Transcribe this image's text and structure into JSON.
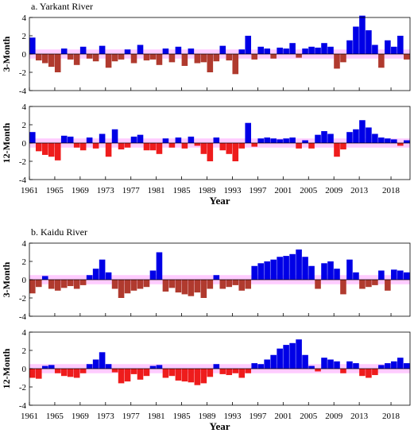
{
  "chart_data": [
    {
      "type": "area",
      "title": "a. Yarkant River",
      "xlabel": "Year",
      "subplots": [
        {
          "ylabel": "3-Month",
          "ylim": [
            -4,
            4
          ],
          "yticks": [
            "4",
            "2",
            "0",
            "-2",
            "-4"
          ],
          "x": [
            1961,
            1962,
            1963,
            1964,
            1965,
            1966,
            1967,
            1968,
            1969,
            1970,
            1971,
            1972,
            1973,
            1974,
            1975,
            1976,
            1977,
            1978,
            1979,
            1980,
            1981,
            1982,
            1983,
            1984,
            1985,
            1986,
            1987,
            1988,
            1989,
            1990,
            1991,
            1992,
            1993,
            1994,
            1995,
            1996,
            1997,
            1998,
            1999,
            2000,
            2001,
            2002,
            2003,
            2004,
            2005,
            2006,
            2007,
            2008,
            2009,
            2010,
            2011,
            2012,
            2013,
            2014,
            2015,
            2016,
            2017,
            2018,
            2019,
            2020
          ],
          "values": [
            1.8,
            -0.7,
            -1.0,
            -1.4,
            -2.0,
            0.6,
            -0.6,
            -1.2,
            0.8,
            -0.5,
            -0.8,
            0.9,
            -1.5,
            -0.8,
            -0.6,
            0.5,
            -1.0,
            1.0,
            -0.7,
            -0.6,
            -1.2,
            0.6,
            -0.9,
            0.8,
            -1.3,
            0.6,
            -1.0,
            -0.9,
            -2.0,
            -0.8,
            0.9,
            -0.7,
            -2.2,
            0.5,
            2.0,
            -0.6,
            0.8,
            0.6,
            -0.5,
            0.7,
            0.6,
            1.2,
            -0.4,
            0.6,
            0.8,
            0.7,
            1.2,
            0.8,
            -1.6,
            -0.9,
            1.5,
            3.0,
            4.2,
            2.6,
            1.0,
            -1.5,
            1.5,
            0.8,
            2.0,
            -0.6
          ]
        },
        {
          "ylabel": "12-Month",
          "ylim": [
            -4,
            4
          ],
          "yticks": [
            "4",
            "2",
            "0",
            "-2",
            "-4"
          ],
          "x": [
            1961,
            1962,
            1963,
            1964,
            1965,
            1966,
            1967,
            1968,
            1969,
            1970,
            1971,
            1972,
            1973,
            1974,
            1975,
            1976,
            1977,
            1978,
            1979,
            1980,
            1981,
            1982,
            1983,
            1984,
            1985,
            1986,
            1987,
            1988,
            1989,
            1990,
            1991,
            1992,
            1993,
            1994,
            1995,
            1996,
            1997,
            1998,
            1999,
            2000,
            2001,
            2002,
            2003,
            2004,
            2005,
            2006,
            2007,
            2008,
            2009,
            2010,
            2011,
            2012,
            2013,
            2014,
            2015,
            2016,
            2017,
            2018,
            2019,
            2020
          ],
          "values": [
            1.2,
            -0.9,
            -1.3,
            -1.5,
            -1.9,
            0.8,
            0.7,
            -0.5,
            -0.8,
            0.6,
            -0.6,
            1.0,
            -1.5,
            1.5,
            -0.7,
            -0.5,
            0.7,
            0.9,
            -0.8,
            -0.8,
            -1.2,
            0.5,
            -0.5,
            0.6,
            -0.6,
            0.7,
            -0.3,
            -1.2,
            -2.0,
            0.6,
            -0.8,
            -1.2,
            -2.0,
            -0.6,
            2.2,
            -0.4,
            0.5,
            0.6,
            0.5,
            0.4,
            0.5,
            0.6,
            -0.6,
            0.3,
            -0.6,
            0.9,
            1.3,
            1.0,
            -1.5,
            -0.7,
            1.2,
            1.5,
            2.5,
            1.7,
            1.0,
            0.6,
            0.5,
            0.4,
            -0.3,
            0.3
          ]
        }
      ],
      "xticks": [
        "1961",
        "1965",
        "1969",
        "1973",
        "1977",
        "1981",
        "1985",
        "1989",
        "1993",
        "1997",
        "2001",
        "2005",
        "2009",
        "2013",
        "2018"
      ]
    },
    {
      "type": "area",
      "title": "b. Kaidu River",
      "xlabel": "Year",
      "subplots": [
        {
          "ylabel": "3-Month",
          "ylim": [
            -4,
            4
          ],
          "yticks": [
            "4",
            "2",
            "0",
            "-2",
            "-4"
          ],
          "x": [
            1961,
            1962,
            1963,
            1964,
            1965,
            1966,
            1967,
            1968,
            1969,
            1970,
            1971,
            1972,
            1973,
            1974,
            1975,
            1976,
            1977,
            1978,
            1979,
            1980,
            1981,
            1982,
            1983,
            1984,
            1985,
            1986,
            1987,
            1988,
            1989,
            1990,
            1991,
            1992,
            1993,
            1994,
            1995,
            1996,
            1997,
            1998,
            1999,
            2000,
            2001,
            2002,
            2003,
            2004,
            2005,
            2006,
            2007,
            2008,
            2009,
            2010,
            2011,
            2012,
            2013,
            2014,
            2015,
            2016,
            2017,
            2018,
            2019,
            2020
          ],
          "values": [
            -1.5,
            -0.8,
            0.4,
            -1.0,
            -1.2,
            -0.9,
            -0.7,
            -1.0,
            -0.6,
            0.5,
            1.2,
            2.2,
            0.8,
            -1.0,
            -2.0,
            -1.5,
            -1.2,
            -1.0,
            -0.8,
            1.0,
            3.0,
            -1.3,
            -0.9,
            -1.4,
            -1.6,
            -1.8,
            -1.4,
            -2.0,
            -1.0,
            0.5,
            -1.0,
            -0.8,
            -0.6,
            -1.2,
            -1.0,
            1.5,
            1.8,
            2.0,
            2.2,
            2.5,
            2.6,
            2.8,
            3.3,
            2.5,
            1.5,
            -1.0,
            1.8,
            2.0,
            1.2,
            -1.6,
            2.2,
            0.8,
            -1.0,
            -0.8,
            -0.6,
            1.0,
            -1.2,
            1.1,
            1.0,
            0.8
          ]
        },
        {
          "ylabel": "12-Month",
          "ylim": [
            -4,
            4
          ],
          "yticks": [
            "4",
            "2",
            "0",
            "-2",
            "-4"
          ],
          "x": [
            1961,
            1962,
            1963,
            1964,
            1965,
            1966,
            1967,
            1968,
            1969,
            1970,
            1971,
            1972,
            1973,
            1974,
            1975,
            1976,
            1977,
            1978,
            1979,
            1980,
            1981,
            1982,
            1983,
            1984,
            1985,
            1986,
            1987,
            1988,
            1989,
            1990,
            1991,
            1992,
            1993,
            1994,
            1995,
            1996,
            1997,
            1998,
            1999,
            2000,
            2001,
            2002,
            2003,
            2004,
            2005,
            2006,
            2007,
            2008,
            2009,
            2010,
            2011,
            2012,
            2013,
            2014,
            2015,
            2016,
            2017,
            2018,
            2019,
            2020
          ],
          "values": [
            -1.0,
            -1.1,
            0.3,
            0.4,
            -0.5,
            -0.8,
            -0.9,
            -1.0,
            -0.5,
            0.5,
            1.0,
            1.8,
            0.5,
            -0.4,
            -1.6,
            -1.4,
            -0.6,
            -1.2,
            -0.8,
            0.3,
            0.4,
            -1.0,
            -0.8,
            -1.3,
            -1.4,
            -1.5,
            -1.8,
            -1.6,
            -0.9,
            0.5,
            -0.6,
            -0.7,
            -0.5,
            -1.0,
            -0.5,
            0.6,
            0.5,
            1.0,
            1.5,
            2.2,
            2.6,
            2.8,
            3.2,
            1.5,
            0.3,
            -0.3,
            1.2,
            1.0,
            0.8,
            -0.5,
            0.8,
            0.6,
            -0.8,
            -1.0,
            -0.7,
            0.4,
            0.6,
            0.8,
            1.2,
            0.6
          ]
        }
      ],
      "xticks": [
        "1961",
        "1965",
        "1969",
        "1973",
        "1977",
        "1981",
        "1985",
        "1989",
        "1993",
        "1997",
        "2001",
        "2005",
        "2009",
        "2013",
        "2018"
      ]
    }
  ],
  "colors": {
    "positive": "#0000e6",
    "negative_3m": "#b03a2e",
    "negative_12m": "#ee1c1c",
    "band": "#ffccff",
    "axis": "#000000"
  }
}
